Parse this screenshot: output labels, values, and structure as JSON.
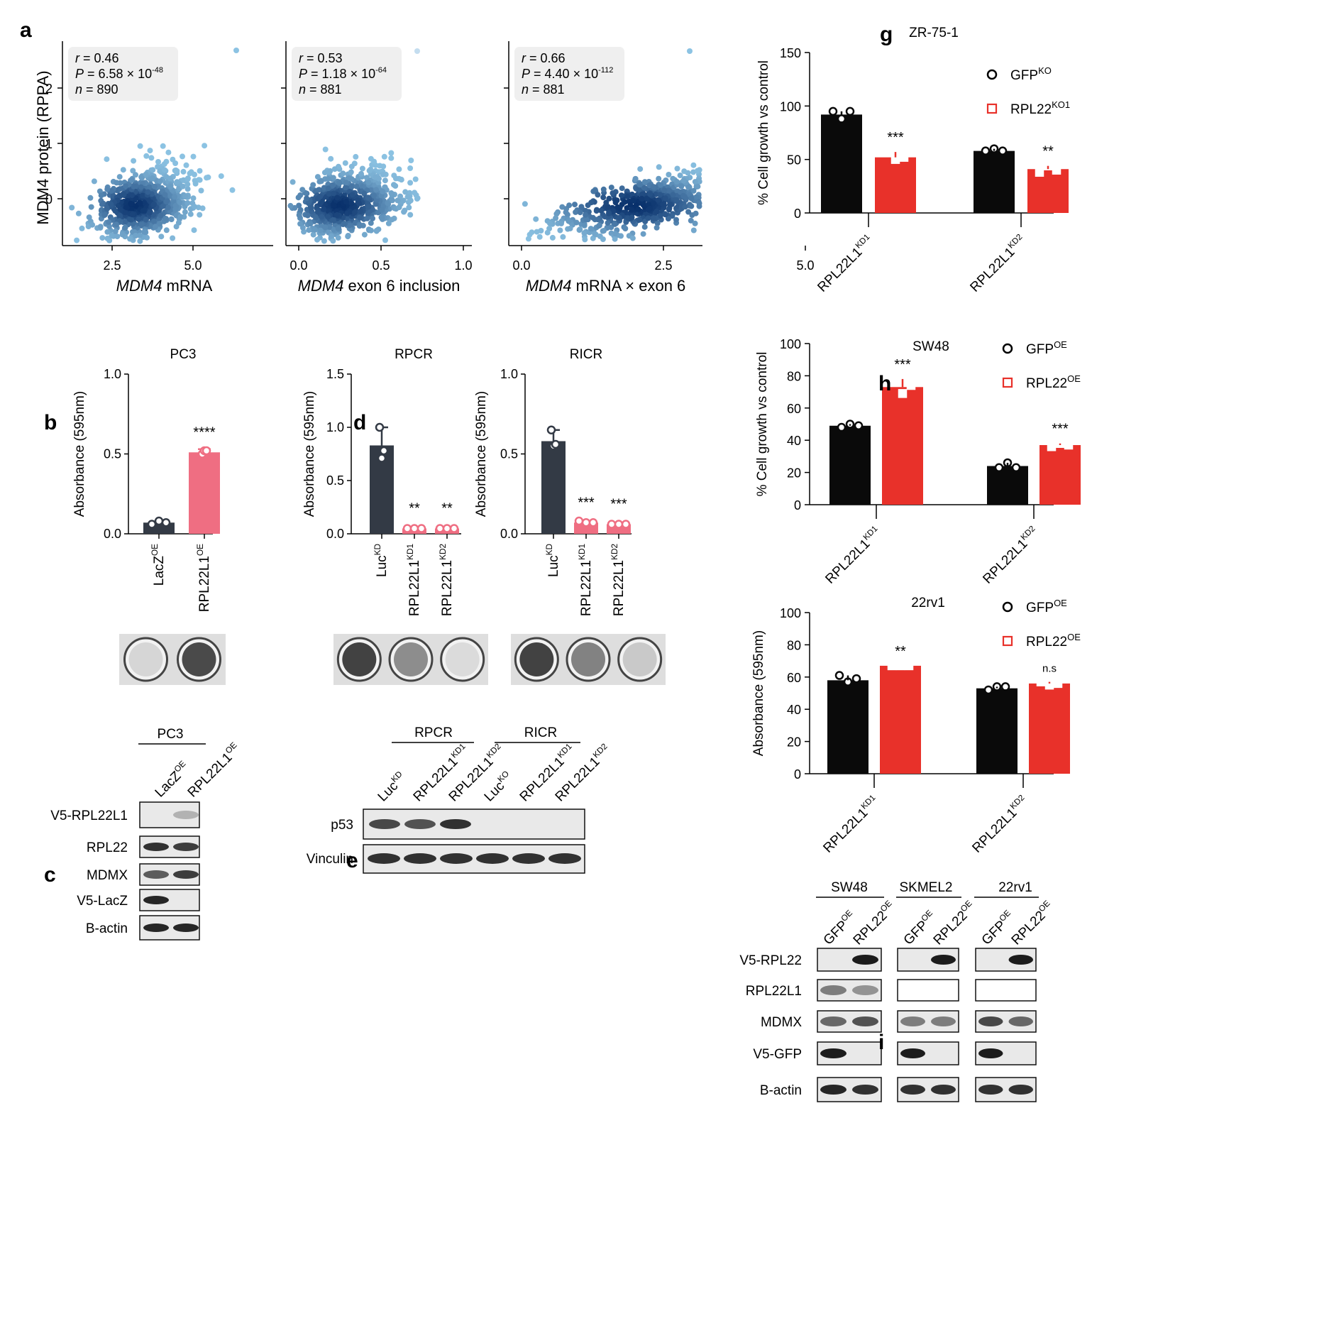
{
  "panel_labels": {
    "a": "a",
    "b": "b",
    "c": "c",
    "d": "d",
    "e": "e",
    "g": "g",
    "h": "h",
    "i": "i"
  },
  "panel_a": {
    "ylabel": "MDM4 protein (RPPA)",
    "plots": [
      {
        "xlabel_italic": "MDM4",
        "xlabel_rest": " mRNA",
        "r": "0.46",
        "p_mant": "6.58",
        "p_exp": "-48",
        "n": "890",
        "xticks": [
          "2.5",
          "5.0"
        ]
      },
      {
        "xlabel_italic": "MDM4",
        "xlabel_rest": " exon 6 inclusion",
        "r": "0.53",
        "p_mant": "1.18",
        "p_exp": "-64",
        "n": "881",
        "xticks": [
          "0.0",
          "0.5",
          "1.0"
        ]
      },
      {
        "xlabel_italic": "MDM4",
        "xlabel_rest": " mRNA × exon 6",
        "r": "0.66",
        "p_mant": "4.40",
        "p_exp": "-112",
        "n": "881",
        "xticks": [
          "0.0",
          "2.5",
          "5.0"
        ]
      }
    ],
    "yticks": [
      "0",
      "1",
      "2"
    ],
    "stat_r": "r",
    "stat_p": "P",
    "stat_n": "n",
    "eq": " = ",
    "times10": " × 10"
  },
  "chart_data": [
    {
      "type": "bar",
      "panel": "b",
      "title": "PC3",
      "ylabel": "Absorbance (595nm)",
      "ylim": [
        0,
        1.0
      ],
      "yticks": [
        "0.0",
        "0.5",
        "1.0"
      ],
      "categories": [
        "LacZ",
        "RPL22L1"
      ],
      "cat_sup": [
        "OE",
        "OE"
      ],
      "values": [
        0.07,
        0.51
      ],
      "points": [
        [
          0.06,
          0.08,
          0.07
        ],
        [
          0.5,
          0.52,
          0.52
        ]
      ],
      "error": [
        0.01,
        0.02
      ],
      "sig": [
        "",
        "****"
      ],
      "colors": [
        "#333a45",
        "#ef6e82"
      ]
    },
    {
      "type": "bar",
      "panel": "d1",
      "title": "RPCR",
      "ylabel": "Absorbance (595nm)",
      "ylim": [
        0,
        1.5
      ],
      "yticks": [
        "0.0",
        "0.5",
        "1.0",
        "1.5"
      ],
      "categories": [
        "Luc",
        "RPL22L1",
        "RPL22L1"
      ],
      "cat_sup": [
        "KD",
        "KD1",
        "KD2"
      ],
      "values": [
        0.83,
        0.05,
        0.05
      ],
      "points": [
        [
          1.0,
          0.71,
          0.78
        ],
        [
          0.05,
          0.05,
          0.05
        ],
        [
          0.05,
          0.05,
          0.05
        ]
      ],
      "error": [
        0.17,
        0.01,
        0.01
      ],
      "sig": [
        "",
        "**",
        "**"
      ],
      "colors": [
        "#333a45",
        "#ef6e82",
        "#ef6e82"
      ]
    },
    {
      "type": "bar",
      "panel": "d2",
      "title": "RICR",
      "ylabel": "Absorbance (595nm)",
      "ylim": [
        0,
        1.0
      ],
      "yticks": [
        "0.0",
        "0.5",
        "1.0"
      ],
      "categories": [
        "Luc",
        "RPL22L1",
        "RPL22L1"
      ],
      "cat_sup": [
        "KD",
        "KD1",
        "KD2"
      ],
      "values": [
        0.58,
        0.07,
        0.06
      ],
      "points": [
        [
          0.65,
          0.55,
          0.56
        ],
        [
          0.08,
          0.07,
          0.07
        ],
        [
          0.06,
          0.06,
          0.06
        ]
      ],
      "error": [
        0.07,
        0.01,
        0.01
      ],
      "sig": [
        "",
        "***",
        "***"
      ],
      "colors": [
        "#333a45",
        "#ef6e82",
        "#ef6e82"
      ]
    },
    {
      "type": "bar",
      "panel": "g",
      "title": "ZR-75-1",
      "ylabel": "% Cell growth vs control",
      "ylim": [
        0,
        150
      ],
      "yticks": [
        "0",
        "50",
        "100",
        "150"
      ],
      "categories": [
        "RPL22L1",
        "RPL22L1"
      ],
      "cat_sup": [
        "KD1",
        "KD2"
      ],
      "series": [
        {
          "name": "GFP",
          "sup": "KO",
          "values": [
            92,
            58
          ],
          "points": [
            [
              95,
              88,
              95
            ],
            [
              58,
              60,
              58
            ]
          ]
        },
        {
          "name": "RPL22",
          "sup": "KO1",
          "values": [
            52,
            41
          ],
          "points": [
            [
              57,
              50,
              52
            ],
            [
              38,
              44,
              40
            ]
          ],
          "sig": [
            "***",
            "**"
          ]
        }
      ],
      "marker": [
        "circle",
        "square"
      ]
    },
    {
      "type": "bar",
      "panel": "h1",
      "title": "SW48",
      "ylabel": "% Cell growth vs control",
      "ylim": [
        0,
        100
      ],
      "yticks": [
        "0",
        "20",
        "40",
        "60",
        "80",
        "100"
      ],
      "categories": [
        "RPL22L1",
        "RPL22L1"
      ],
      "cat_sup": [
        "KD1",
        "KD2"
      ],
      "series": [
        {
          "name": "GFP",
          "sup": "OE",
          "values": [
            49,
            24
          ],
          "points": [
            [
              48,
              50,
              49
            ],
            [
              23,
              26,
              23
            ]
          ]
        },
        {
          "name": "RPL22",
          "sup": "OE",
          "values": [
            73,
            37
          ],
          "points": [
            [
              78,
              69,
              74
            ],
            [
              36,
              38,
              37
            ]
          ],
          "sig": [
            "***",
            "***"
          ]
        }
      ],
      "marker": [
        "circle",
        "square"
      ]
    },
    {
      "type": "bar",
      "panel": "h2",
      "title": "22rv1",
      "ylabel": "Absorbance (595nm)",
      "ylim": [
        0,
        100
      ],
      "yticks": [
        "0",
        "20",
        "40",
        "60",
        "80",
        "100"
      ],
      "categories": [
        "RPL22L1",
        "RPL22L1"
      ],
      "cat_sup": [
        "KD1",
        "KD2"
      ],
      "series": [
        {
          "name": "GFP",
          "sup": "OE",
          "values": [
            58,
            53
          ],
          "points": [
            [
              61,
              57,
              59
            ],
            [
              52,
              54,
              54
            ]
          ]
        },
        {
          "name": "RPL22",
          "sup": "OE",
          "values": [
            67,
            56
          ],
          "points": [
            [
              67,
              67,
              67
            ],
            [
              57,
              55,
              56
            ]
          ],
          "sig": [
            "**",
            "n.s"
          ]
        }
      ],
      "marker": [
        "circle",
        "square"
      ]
    }
  ],
  "panel_c": {
    "title": "PC3",
    "cols": [
      {
        "name": "LacZ",
        "sup": "OE"
      },
      {
        "name": "RPL22L1",
        "sup": "OE"
      }
    ],
    "rows": [
      "V5-RPL22L1",
      "RPL22",
      "MDMX",
      "V5-LacZ",
      "B-actin"
    ]
  },
  "panel_e": {
    "groups": [
      "RPCR",
      "RICR"
    ],
    "cols": [
      {
        "name": "Luc",
        "sup": "KD"
      },
      {
        "name": "RPL22L1",
        "sup": "KD1"
      },
      {
        "name": "RPL22L1",
        "sup": "KD2"
      },
      {
        "name": "Luc",
        "sup": "KO"
      },
      {
        "name": "RPL22L1",
        "sup": "KD1"
      },
      {
        "name": "RPL22L1",
        "sup": "KD2"
      }
    ],
    "rows": [
      "p53",
      "Vinculin"
    ]
  },
  "panel_i": {
    "groups": [
      "SW48",
      "SKMEL2",
      "22rv1"
    ],
    "cols": [
      {
        "name": "GFP",
        "sup": "OE"
      },
      {
        "name": "RPL22",
        "sup": "OE"
      }
    ],
    "rows": [
      "V5-RPL22",
      "RPL22L1",
      "MDMX",
      "V5-GFP",
      "B-actin"
    ]
  },
  "colors": {
    "dark": "#333a45",
    "pink": "#ef6e82",
    "black": "#0a0a0a",
    "red": "#e8312a",
    "scatter_light": "#8cc3e3",
    "scatter_dark": "#08306b"
  }
}
